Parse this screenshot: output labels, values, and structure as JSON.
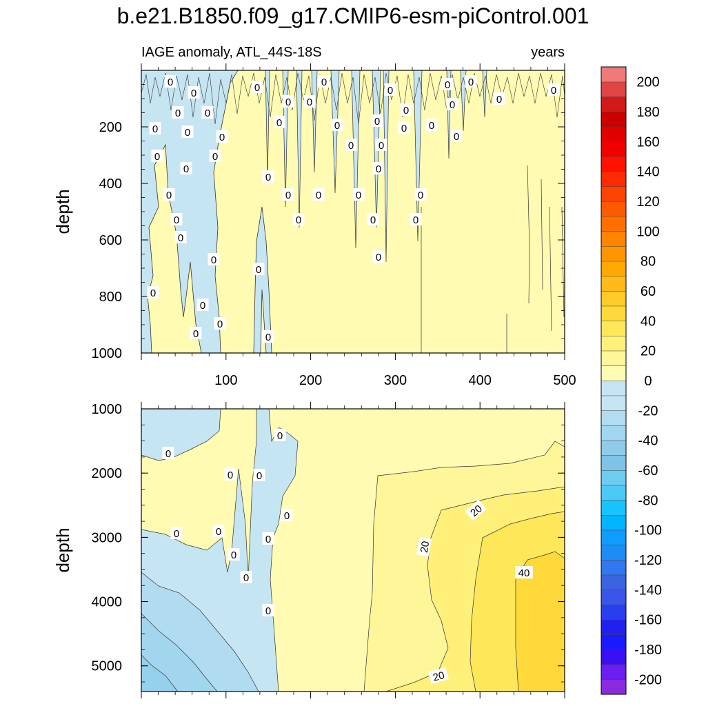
{
  "chart_data": {
    "type": "heatmap",
    "title": "b.e21.B1850.f09_g17.CMIP6-esm-piControl.001",
    "subtitle_left": "IAGE anomaly, ATL_44S-18S",
    "subtitle_right": "years",
    "xlabel": "",
    "ylabel": "depth",
    "x_range": [
      0,
      500
    ],
    "x_tick_labels": [
      "100",
      "200",
      "300",
      "400",
      "500"
    ],
    "panels": [
      {
        "name": "upper",
        "ylim": [
          1000,
          0
        ],
        "y_tick_labels": [
          "200",
          "400",
          "600",
          "800",
          "1000"
        ],
        "contour_labels": [
          "0"
        ]
      },
      {
        "name": "lower",
        "ylim": [
          5400,
          1000
        ],
        "y_tick_labels": [
          "1000",
          "2000",
          "3000",
          "4000",
          "5000"
        ],
        "contour_labels": [
          "0",
          "20",
          "40"
        ]
      }
    ],
    "colorbar": {
      "levels": [
        -210,
        -200,
        -190,
        -180,
        -170,
        -160,
        -150,
        -140,
        -130,
        -120,
        -110,
        -100,
        -90,
        -80,
        -70,
        -60,
        -50,
        -40,
        -30,
        -20,
        -10,
        0,
        10,
        20,
        30,
        40,
        50,
        60,
        70,
        80,
        90,
        100,
        110,
        120,
        130,
        140,
        150,
        160,
        170,
        180,
        190,
        200,
        210
      ],
      "labels": [
        "200",
        "180",
        "160",
        "140",
        "120",
        "100",
        "80",
        "60",
        "40",
        "20",
        "0",
        "-20",
        "-40",
        "-60",
        "-80",
        "-100",
        "-120",
        "-140",
        "-160",
        "-180",
        "-200"
      ],
      "colors": [
        "#8a2be2",
        "#6a1ff0",
        "#3b0ff5",
        "#1a1aff",
        "#2020f0",
        "#2a3ef0",
        "#3a55e8",
        "#3a64e0",
        "#2f78f0",
        "#1e8cf5",
        "#109bff",
        "#00b4ff",
        "#18c4ff",
        "#4ccaf5",
        "#6ccdf0",
        "#7fc4e8",
        "#90cbea",
        "#a2d6ef",
        "#b2dcef",
        "#c6e5f3",
        "#c6e5f3",
        "#fffbb2",
        "#fff599",
        "#fff07a",
        "#ffe75a",
        "#ffd93a",
        "#ffcb29",
        "#ffba17",
        "#ffa800",
        "#ff9600",
        "#ff8400",
        "#ff6f00",
        "#ff5a00",
        "#ff4200",
        "#ff2a00",
        "#ff1200",
        "#f00000",
        "#e00000",
        "#cc0000",
        "#d11a1a",
        "#e04444",
        "#ee7a7a",
        "#f6b0b0"
      ]
    }
  }
}
